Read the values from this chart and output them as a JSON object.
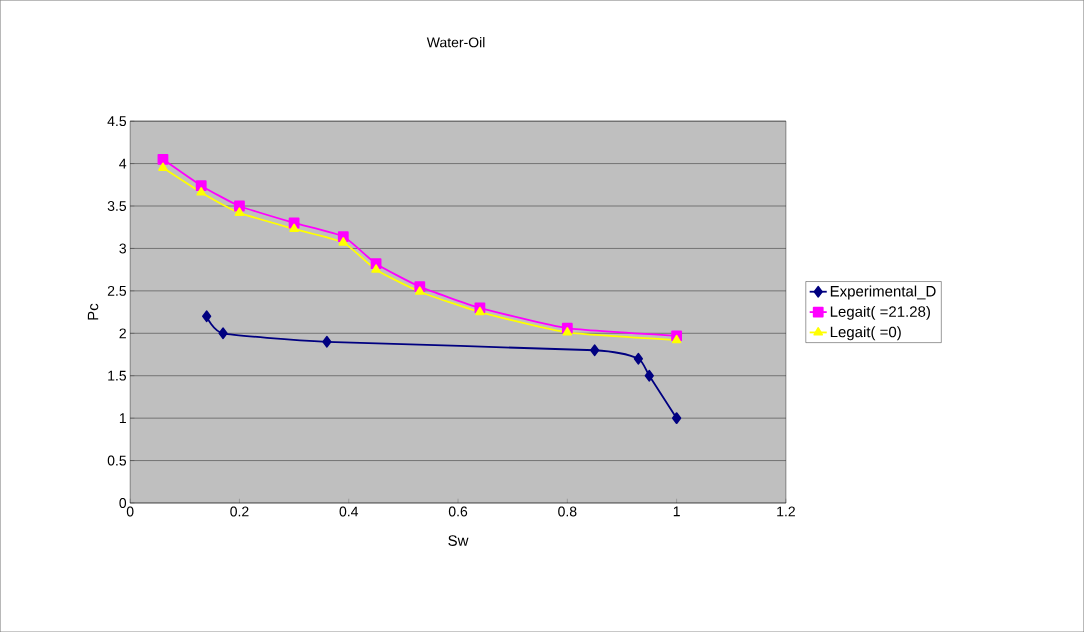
{
  "chart_data": {
    "type": "line",
    "title": "Water-Oil",
    "xlabel": "Sw",
    "ylabel": "Pc",
    "xlim": [
      0,
      1.2
    ],
    "xticks": [
      0,
      0.2,
      0.4,
      0.6,
      0.8,
      1,
      1.2
    ],
    "ylim": [
      0,
      4.5
    ],
    "yticks": [
      0,
      0.5,
      1,
      1.5,
      2,
      2.5,
      3,
      3.5,
      4,
      4.5
    ],
    "grid": "y",
    "legend": "right",
    "line_style": "solid",
    "series": [
      {
        "name": "Experimental_D",
        "color": "#000080",
        "marker": "diamond",
        "x": [
          0.14,
          0.17,
          0.36,
          0.85,
          0.93,
          0.95,
          1.0
        ],
        "values": [
          2.2,
          2.0,
          1.9,
          1.8,
          1.7,
          1.5,
          1.0
        ]
      },
      {
        "name": "Legait(    =21.28)",
        "color": "#ff00ff",
        "marker": "square",
        "x": [
          0.06,
          0.13,
          0.2,
          0.3,
          0.39,
          0.45,
          0.53,
          0.64,
          0.8,
          1.0
        ],
        "values": [
          4.05,
          3.74,
          3.5,
          3.3,
          3.14,
          2.82,
          2.55,
          2.3,
          2.06,
          1.97
        ]
      },
      {
        "name": "Legait(    =0)",
        "color": "#ffff00",
        "marker": "triangle",
        "x": [
          0.06,
          0.13,
          0.2,
          0.3,
          0.39,
          0.45,
          0.53,
          0.64,
          0.8,
          1.0
        ],
        "values": [
          3.95,
          3.66,
          3.42,
          3.23,
          3.07,
          2.75,
          2.49,
          2.25,
          2.01,
          1.92
        ]
      }
    ]
  }
}
